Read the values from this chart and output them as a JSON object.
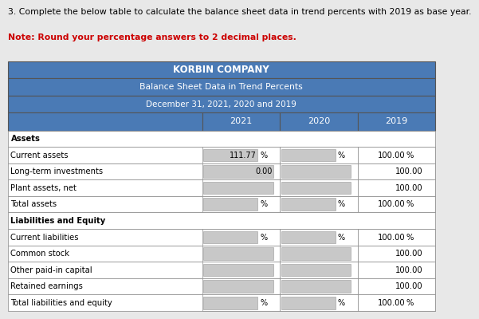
{
  "title1": "KORBIN COMPANY",
  "title2": "Balance Sheet Data in Trend Percents",
  "title3": "December 31, 2021, 2020 and 2019",
  "header_question": "3. Complete the below table to calculate the balance sheet data in trend percents with 2019 as base year.",
  "header_note": "Note: Round your percentage answers to 2 decimal places.",
  "col_headers": [
    "2021",
    "2020",
    "2019"
  ],
  "display": [
    {
      "type": "section",
      "label": "Assets",
      "v2021": "",
      "pct2021": false,
      "v2020": "",
      "pct2020": false,
      "v2019": "",
      "pct2019": false
    },
    {
      "type": "data",
      "label": "Current assets",
      "v2021": "111.77",
      "pct2021": true,
      "v2020": "",
      "pct2020": true,
      "v2019": "100.00",
      "pct2019": true
    },
    {
      "type": "data",
      "label": "Long-term investments",
      "v2021": "0.00",
      "pct2021": false,
      "v2020": "",
      "pct2020": false,
      "v2019": "100.00",
      "pct2019": false
    },
    {
      "type": "data",
      "label": "Plant assets, net",
      "v2021": "",
      "pct2021": false,
      "v2020": "",
      "pct2020": false,
      "v2019": "100.00",
      "pct2019": false
    },
    {
      "type": "data",
      "label": "Total assets",
      "v2021": "",
      "pct2021": true,
      "v2020": "",
      "pct2020": true,
      "v2019": "100.00",
      "pct2019": true
    },
    {
      "type": "section",
      "label": "Liabilities and Equity",
      "v2021": "",
      "pct2021": false,
      "v2020": "",
      "pct2020": false,
      "v2019": "",
      "pct2019": false
    },
    {
      "type": "data",
      "label": "Current liabilities",
      "v2021": "",
      "pct2021": true,
      "v2020": "",
      "pct2020": true,
      "v2019": "100.00",
      "pct2019": true
    },
    {
      "type": "data",
      "label": "Common stock",
      "v2021": "",
      "pct2021": false,
      "v2020": "",
      "pct2020": false,
      "v2019": "100.00",
      "pct2019": false
    },
    {
      "type": "data",
      "label": "Other paid-in capital",
      "v2021": "",
      "pct2021": false,
      "v2020": "",
      "pct2020": false,
      "v2019": "100.00",
      "pct2019": false
    },
    {
      "type": "data",
      "label": "Retained earnings",
      "v2021": "",
      "pct2021": false,
      "v2020": "",
      "pct2020": false,
      "v2019": "100.00",
      "pct2019": false
    },
    {
      "type": "data",
      "label": "Total liabilities and equity",
      "v2021": "",
      "pct2021": true,
      "v2020": "",
      "pct2020": true,
      "v2019": "100.00",
      "pct2019": true
    }
  ],
  "header_bg": "#4a7ab5",
  "text_color_header": "#ffffff",
  "bg_color": "#e8e8e8"
}
